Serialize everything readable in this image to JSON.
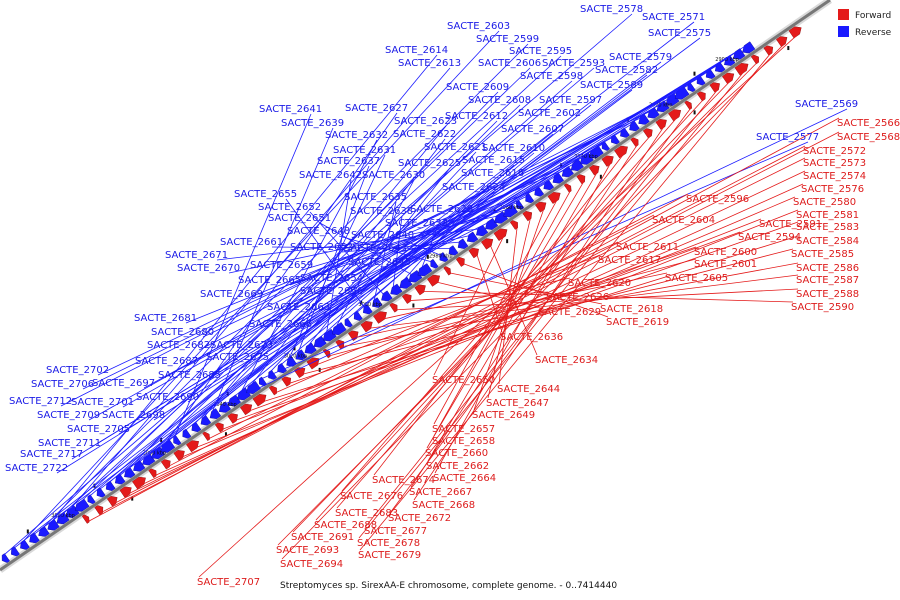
{
  "legend": {
    "forward_label": "Forward",
    "reverse_label": "Reverse",
    "forward_color": "#e41a1a",
    "reverse_color": "#1a1aff"
  },
  "caption": "Streptomyces sp. SirexAA-E chromosome, complete genome. - 0..7414440",
  "colors": {
    "forward": "#e41a1a",
    "reverse": "#1a1aff",
    "backbone": "#777777"
  },
  "scale_ticks": [
    "2900 kbp",
    "2920 kbp",
    "2940 kbp",
    "2960 kbp",
    "2980 kbp",
    "3000 kbp",
    "3020 kbp",
    "3040 kbp",
    "3060 kbp",
    "3080 kbp"
  ],
  "reverse_labels": [
    "SACTE_2578",
    "SACTE_2571",
    "SACTE_2603",
    "SACTE_2575",
    "SACTE_2599",
    "SACTE_2614",
    "SACTE_2595",
    "SACTE_2613",
    "SACTE_2606",
    "SACTE_2593",
    "SACTE_2579",
    "SACTE_2598",
    "SACTE_2582",
    "SACTE_2609",
    "SACTE_2589",
    "SACTE_2608",
    "SACTE_2597",
    "SACTE_2627",
    "SACTE_2641",
    "SACTE_2602",
    "SACTE_2612",
    "SACTE_2623",
    "SACTE_2639",
    "SACTE_2569",
    "SACTE_2607",
    "SACTE_2632",
    "SACTE_2622",
    "SACTE_2577",
    "SACTE_2621",
    "SACTE_2610",
    "SACTE_2631",
    "SACTE_2637",
    "SACTE_2625",
    "SACTE_2615",
    "SACTE_2642",
    "SACTE_2630",
    "SACTE_2616",
    "SACTE_2624",
    "SACTE_2655",
    "SACTE_2635",
    "SACTE_2652",
    "SACTE_2638",
    "SACTE_2628",
    "SACTE_2651",
    "SACTE_2633",
    "SACTE_2648",
    "SACTE_2640",
    "SACTE_2661",
    "SACTE_2653",
    "SACTE_2643",
    "SACTE_2671",
    "SACTE_2645",
    "SACTE_2670",
    "SACTE_2659",
    "SACTE_2665",
    "SACTE_2654",
    "SACTE_2669",
    "SACTE_2656",
    "SACTE_2663",
    "SACTE_2681",
    "SACTE_2666",
    "SACTE_2680",
    "SACTE_2682",
    "SACTE_2673",
    "SACTE_2687",
    "SACTE_2675",
    "SACTE_2685",
    "SACTE_2702",
    "SACTE_2706",
    "SACTE_2697",
    "SACTE_2690",
    "SACTE_2712",
    "SACTE_2701",
    "SACTE_2709",
    "SACTE_2698",
    "SACTE_2705",
    "SACTE_2711",
    "SACTE_2717",
    "SACTE_2722"
  ],
  "forward_labels": [
    "SACTE_2566",
    "SACTE_2568",
    "SACTE_2572",
    "SACTE_2573",
    "SACTE_2574",
    "SACTE_2576",
    "SACTE_2596",
    "SACTE_2580",
    "SACTE_2581",
    "SACTE_2604",
    "SACTE_2591",
    "SACTE_2583",
    "SACTE_2594",
    "SACTE_2584",
    "SACTE_2611",
    "SACTE_2600",
    "SACTE_2585",
    "SACTE_2617",
    "SACTE_2601",
    "SACTE_2586",
    "SACTE_2605",
    "SACTE_2587",
    "SACTE_2620",
    "SACTE_2588",
    "SACTE_2626",
    "SACTE_2590",
    "SACTE_2629",
    "SACTE_2618",
    "SACTE_2619",
    "SACTE_2636",
    "SACTE_2634",
    "SACTE_2650",
    "SACTE_2644",
    "SACTE_2647",
    "SACTE_2649",
    "SACTE_2657",
    "SACTE_2658",
    "SACTE_2660",
    "SACTE_2662",
    "SACTE_2664",
    "SACTE_2674",
    "SACTE_2667",
    "SACTE_2676",
    "SACTE_2668",
    "SACTE_2683",
    "SACTE_2672",
    "SACTE_2688",
    "SACTE_2677",
    "SACTE_2691",
    "SACTE_2678",
    "SACTE_2693",
    "SACTE_2679",
    "SACTE_2694",
    "SACTE_2707"
  ]
}
